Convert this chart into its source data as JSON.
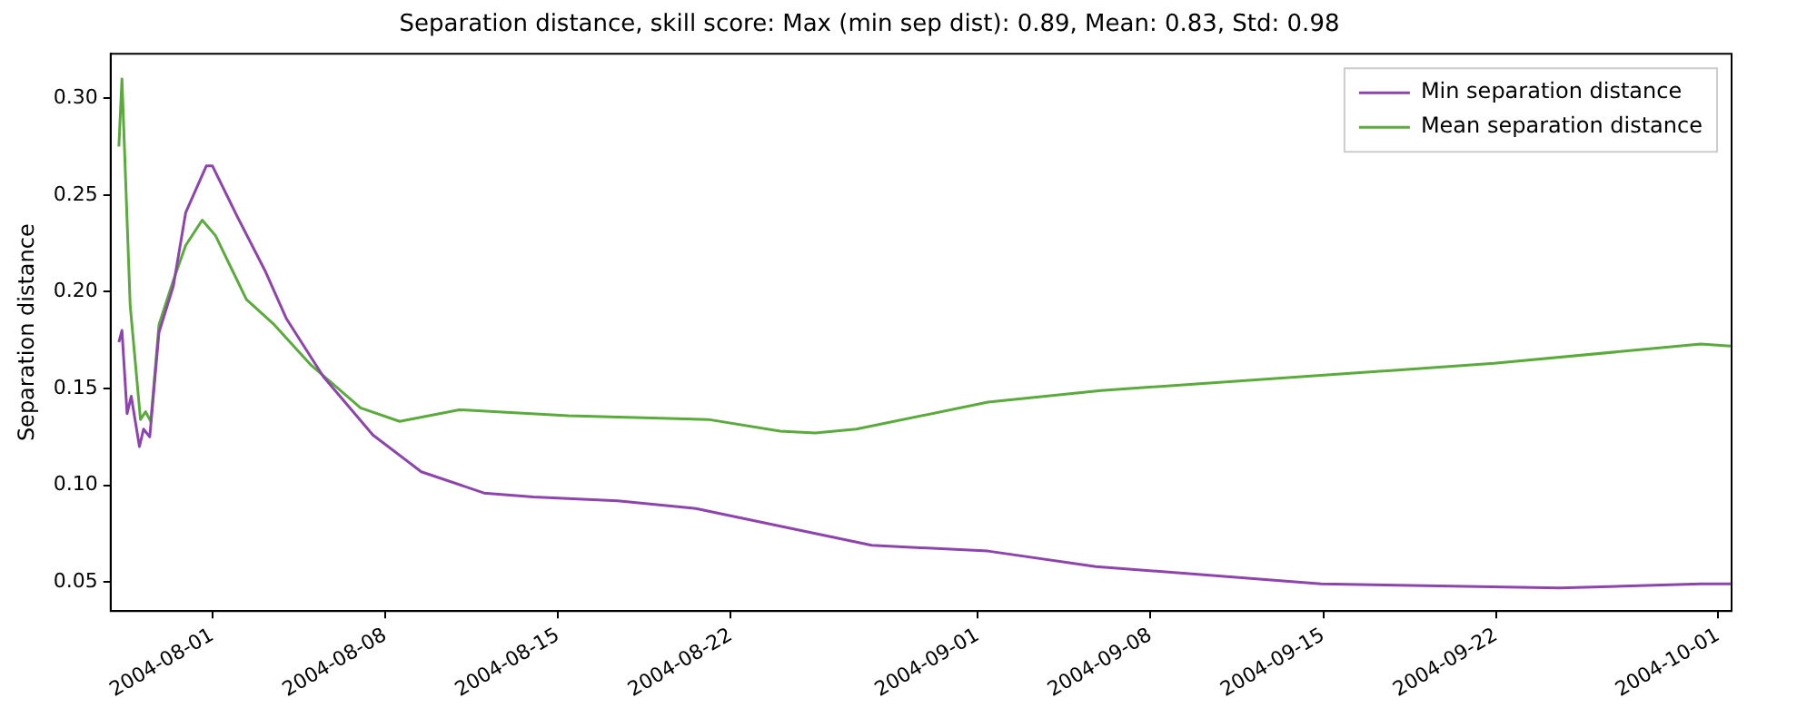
{
  "chart_data": {
    "type": "line",
    "title": "Separation distance, skill score: Max (min sep dist): 0.89, Mean: 0.83, Std: 0.98",
    "ylabel": "Separation distance",
    "xlim": [
      "2004-07-27T21:00",
      "2004-10-01T13:00"
    ],
    "xticks": [
      "2004-08-01",
      "2004-08-08",
      "2004-08-15",
      "2004-08-22",
      "2004-09-01",
      "2004-09-08",
      "2004-09-15",
      "2004-09-22",
      "2004-10-01"
    ],
    "ylim": [
      0.035,
      0.323
    ],
    "yticks": [
      0.05,
      {
        "value": 0.1,
        "label": "0.10"
      },
      0.15,
      {
        "value": 0.2,
        "label": "0.20"
      },
      0.25,
      {
        "value": 0.3,
        "label": "0.30"
      }
    ],
    "grid": false,
    "legend": "top right",
    "marker": "none",
    "line_style": "solid",
    "series": [
      {
        "name": "Min separation distance",
        "color": "#8e44ad",
        "x": [
          "2004-07-28T05:00",
          "2004-07-28T08:00",
          "2004-07-28T13:00",
          "2004-07-28T17:00",
          "2004-07-29T01:00",
          "2004-07-29T05:00",
          "2004-07-29T11:00",
          "2004-07-29T20:00",
          "2004-07-30T10:00",
          "2004-07-30T22:00",
          "2004-07-31T18:00",
          "2004-08-01",
          "2004-08-02",
          "2004-08-03T03:00",
          "2004-08-04",
          "2004-08-05T12:00",
          "2004-08-07T12:00",
          "2004-08-09T11:00",
          "2004-08-12",
          "2004-08-14",
          "2004-08-17T10:00",
          "2004-08-20T14:00",
          "2004-08-27T17:00",
          "2004-09-01T10:00",
          "2004-09-05T19:00",
          "2004-09-14T22:00",
          "2004-09-24T14:00",
          "2004-09-30T07:00",
          "2004-10-01T12:00"
        ],
        "values": [
          0.174,
          0.18,
          0.137,
          0.146,
          0.12,
          0.129,
          0.125,
          0.179,
          0.203,
          0.241,
          0.265,
          0.265,
          0.239,
          0.211,
          0.186,
          0.156,
          0.126,
          0.107,
          0.096,
          0.094,
          0.092,
          0.088,
          0.069,
          0.066,
          0.058,
          0.049,
          0.047,
          0.049,
          0.049
        ]
      },
      {
        "name": "Mean separation distance",
        "color": "#5aab3c",
        "x": [
          "2004-07-28T05:00",
          "2004-07-28T08:00",
          "2004-07-28T16:00",
          "2004-07-29T02:00",
          "2004-07-29T07:00",
          "2004-07-29T12:00",
          "2004-07-29T20:00",
          "2004-07-30T10:00",
          "2004-07-30T22:00",
          "2004-07-31T14:00",
          "2004-08-01T03:00",
          "2004-08-02T09:00",
          "2004-08-03T12:00",
          "2004-08-05",
          "2004-08-07",
          "2004-08-08T14:00",
          "2004-08-11",
          "2004-08-15T10:00",
          "2004-08-21T02:00",
          "2004-08-24",
          "2004-08-25T10:00",
          "2004-08-27T02:00",
          "2004-09-01T10:00",
          "2004-09-06",
          "2004-09-21T22:00",
          "2004-09-30T07:00",
          "2004-10-01T12:00"
        ],
        "values": [
          0.275,
          0.31,
          0.193,
          0.134,
          0.138,
          0.133,
          0.183,
          0.206,
          0.224,
          0.237,
          0.229,
          0.196,
          0.183,
          0.162,
          0.14,
          0.133,
          0.139,
          0.136,
          0.134,
          0.128,
          0.127,
          0.129,
          0.143,
          0.149,
          0.163,
          0.173,
          0.172
        ]
      }
    ]
  }
}
